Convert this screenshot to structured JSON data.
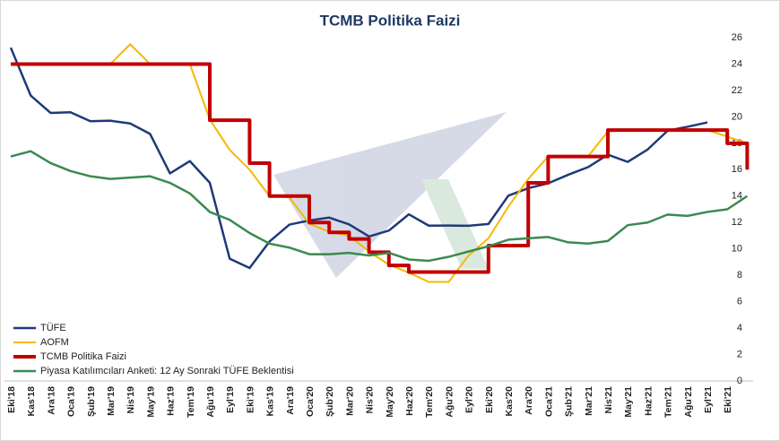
{
  "chart_data": {
    "type": "line",
    "title": "TCMB Politika Faizi",
    "categories": [
      "Eki'18",
      "Kas'18",
      "Ara'18",
      "Oca'19",
      "Şub'19",
      "Mar'19",
      "Nis'19",
      "May'19",
      "Haz'19",
      "Tem'19",
      "Ağu'19",
      "Eyl'19",
      "Eki'19",
      "Kas'19",
      "Ara'19",
      "Oca'20",
      "Şub'20",
      "Mar'20",
      "Nis'20",
      "May'20",
      "Haz'20",
      "Tem'20",
      "Ağu'20",
      "Eyl'20",
      "Eki'20",
      "Kas'20",
      "Ara'20",
      "Oca'21",
      "Şub'21",
      "Mar'21",
      "Nis'21",
      "May'21",
      "Haz'21",
      "Tem'21",
      "Ağu'21",
      "Eyl'21",
      "Eki'21",
      null
    ],
    "series": [
      {
        "name": "TÜFE",
        "color": "#1f3a7a",
        "width": 2.5,
        "values": [
          25.24,
          21.62,
          20.3,
          20.35,
          19.67,
          19.71,
          19.5,
          18.71,
          15.72,
          16.65,
          15.01,
          9.26,
          8.55,
          10.56,
          11.84,
          12.15,
          12.37,
          11.86,
          10.94,
          11.39,
          12.62,
          11.76,
          11.77,
          11.75,
          11.89,
          14.03,
          14.6,
          14.97,
          15.61,
          16.19,
          17.14,
          16.59,
          17.53,
          18.95,
          19.25,
          19.58,
          null,
          null
        ]
      },
      {
        "name": "AOFM",
        "color": "#f5b800",
        "width": 2,
        "values": [
          24,
          24,
          24,
          24,
          24,
          24,
          25.5,
          24,
          24,
          24,
          19.8,
          17.5,
          16,
          14,
          13.9,
          11.9,
          11.3,
          11,
          9.8,
          8.8,
          8.2,
          7.5,
          7.5,
          9.5,
          10.8,
          13.2,
          15.3,
          17,
          17,
          17,
          18.9,
          19,
          19,
          19,
          19,
          19,
          18.5,
          18
        ]
      },
      {
        "name": "TCMB Politika Faizi",
        "color": "#c00000",
        "width": 4,
        "step": true,
        "values": [
          24,
          24,
          24,
          24,
          24,
          24,
          24,
          24,
          24,
          24,
          19.75,
          19.75,
          16.5,
          14,
          14,
          12,
          11.25,
          10.75,
          9.75,
          8.75,
          8.25,
          8.25,
          8.25,
          8.25,
          10.25,
          10.25,
          15,
          17,
          17,
          17,
          19,
          19,
          19,
          19,
          19,
          19,
          18,
          16
        ]
      },
      {
        "name": "Piyasa Katılımcıları Anketi: 12 Ay Sonraki TÜFE Beklentisi",
        "color": "#3a8a50",
        "width": 2.5,
        "values": [
          17,
          17.4,
          16.5,
          15.9,
          15.5,
          15.3,
          15.4,
          15.5,
          15,
          14.2,
          12.8,
          12.2,
          11.2,
          10.4,
          10.1,
          9.6,
          9.6,
          9.7,
          9.5,
          9.7,
          9.2,
          9.1,
          9.4,
          9.8,
          10.2,
          10.7,
          10.8,
          10.9,
          10.5,
          10.4,
          10.6,
          11.8,
          12,
          12.6,
          12.5,
          12.8,
          13,
          14
        ]
      }
    ],
    "ylim": [
      0,
      26
    ],
    "yticks": [
      0,
      2,
      4,
      6,
      8,
      10,
      12,
      14,
      16,
      18,
      20,
      22,
      24,
      26
    ],
    "legend": "lower left"
  }
}
